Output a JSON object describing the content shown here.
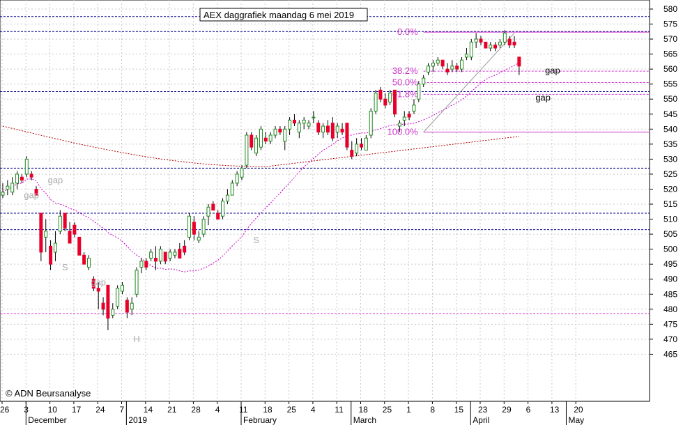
{
  "chart_data": {
    "type": "candlestick",
    "title": "AEX daggrafiek maandag 6 mei 2019",
    "copyright": "© ADN Beursanalyse",
    "colors": {
      "up": "#1e8a1e",
      "down": "#e8002a",
      "ma_short": "#cc00cc",
      "ma_long": "#b00000",
      "fib": "#cc33cc",
      "support": "#00008b"
    },
    "y_axis": {
      "min": 465,
      "max": 580,
      "ticks": [
        580,
        575,
        570,
        565,
        560,
        555,
        550,
        545,
        540,
        535,
        530,
        525,
        520,
        515,
        510,
        505,
        500,
        495,
        490,
        485,
        480,
        475,
        470,
        465
      ]
    },
    "x_axis": {
      "day_labels": [
        "26",
        "3",
        "10",
        "17",
        "24",
        "7",
        "14",
        "21",
        "28",
        "4",
        "11",
        "18",
        "25",
        "4",
        "11",
        "18",
        "25",
        "1",
        "8",
        "15",
        "23",
        "29",
        "6",
        "13",
        "20"
      ],
      "month_labels": [
        "December",
        "2019",
        "February",
        "March",
        "April",
        "May"
      ]
    },
    "levels": [
      {
        "value": 577.5,
        "color": "#00008b"
      },
      {
        "value": 572.5,
        "color": "#00008b"
      },
      {
        "value": 552.5,
        "color": "#00008b"
      },
      {
        "value": 527,
        "color": "#00008b"
      },
      {
        "value": 512,
        "color": "#00008b"
      },
      {
        "value": 506.5,
        "color": "#00008b"
      },
      {
        "value": 478.5,
        "color": "#cc33cc"
      }
    ],
    "fibonacci": [
      {
        "label": "0.0%",
        "value": 572.3
      },
      {
        "label": "38.2%",
        "value": 559.3
      },
      {
        "label": "50.0%",
        "value": 555.5
      },
      {
        "label": "61.8%",
        "value": 551.6
      },
      {
        "label": "100.0%",
        "value": 539
      }
    ],
    "annotations": [
      {
        "text": "gap",
        "day": 11,
        "value": 522,
        "color": "#aaaaaa"
      },
      {
        "text": "gap",
        "day": 6,
        "value": 517,
        "color": "#aaaaaa"
      },
      {
        "text": "S",
        "day": 13,
        "value": 493,
        "color": "#aaaaaa"
      },
      {
        "text": "gap",
        "day": 20,
        "value": 488,
        "color": "#aaaaaa"
      },
      {
        "text": "H",
        "day": 28,
        "value": 469,
        "color": "#aaaaaa"
      },
      {
        "text": "S",
        "day": 53,
        "value": 502,
        "color": "#aaaaaa"
      },
      {
        "text": "gap",
        "day": 115,
        "value": 558.5,
        "color": "#000000"
      },
      {
        "text": "gap",
        "day": 113,
        "value": 549.5,
        "color": "#000000"
      }
    ],
    "candles": [
      {
        "o": 518,
        "h": 522,
        "l": 517,
        "c": 519
      },
      {
        "o": 520,
        "h": 523,
        "l": 518,
        "c": 521
      },
      {
        "o": 519,
        "h": 524,
        "l": 518,
        "c": 522
      },
      {
        "o": 522,
        "h": 526,
        "l": 520,
        "c": 525
      },
      {
        "o": 524,
        "h": 525,
        "l": 522,
        "c": 523
      },
      {
        "o": 525,
        "h": 531,
        "l": 524,
        "c": 530
      },
      {
        "o": 525,
        "h": 526,
        "l": 523,
        "c": 524
      },
      {
        "o": 520,
        "h": 521,
        "l": 518,
        "c": 518
      },
      {
        "o": 512,
        "h": 512,
        "l": 496,
        "c": 499
      },
      {
        "o": 504,
        "h": 510,
        "l": 499,
        "c": 506
      },
      {
        "o": 501,
        "h": 503,
        "l": 493,
        "c": 495
      },
      {
        "o": 499,
        "h": 506,
        "l": 496,
        "c": 502
      },
      {
        "o": 506,
        "h": 513,
        "l": 505,
        "c": 511
      },
      {
        "o": 512,
        "h": 512,
        "l": 506,
        "c": 507
      },
      {
        "o": 506,
        "h": 509,
        "l": 502,
        "c": 502
      },
      {
        "o": 508,
        "h": 509,
        "l": 504,
        "c": 505
      },
      {
        "o": 504,
        "h": 504,
        "l": 498,
        "c": 498
      },
      {
        "o": 498,
        "h": 499,
        "l": 495,
        "c": 495
      },
      {
        "o": 494,
        "h": 498,
        "l": 493,
        "c": 497
      },
      {
        "o": 490,
        "h": 491,
        "l": 486,
        "c": 487
      },
      {
        "o": 487,
        "h": 489,
        "l": 480,
        "c": 486
      },
      {
        "o": 482,
        "h": 484,
        "l": 478,
        "c": 480
      },
      {
        "o": 488,
        "h": 488,
        "l": 473,
        "c": 477
      },
      {
        "o": 478,
        "h": 482,
        "l": 477,
        "c": 480
      },
      {
        "o": 481,
        "h": 488,
        "l": 480,
        "c": 487
      },
      {
        "o": 486,
        "h": 489,
        "l": 485,
        "c": 488
      },
      {
        "o": 483,
        "h": 484,
        "l": 477,
        "c": 479
      },
      {
        "o": 480,
        "h": 484,
        "l": 478,
        "c": 482
      },
      {
        "o": 485,
        "h": 494,
        "l": 484,
        "c": 493
      },
      {
        "o": 494,
        "h": 497,
        "l": 492,
        "c": 496
      },
      {
        "o": 496,
        "h": 497,
        "l": 493,
        "c": 494
      },
      {
        "o": 497,
        "h": 500,
        "l": 496,
        "c": 499
      },
      {
        "o": 497,
        "h": 501,
        "l": 493,
        "c": 496
      },
      {
        "o": 496,
        "h": 501,
        "l": 495,
        "c": 500
      },
      {
        "o": 499,
        "h": 499,
        "l": 495,
        "c": 496
      },
      {
        "o": 497,
        "h": 500,
        "l": 496,
        "c": 499
      },
      {
        "o": 498,
        "h": 500,
        "l": 497,
        "c": 499
      },
      {
        "o": 500,
        "h": 502,
        "l": 497,
        "c": 497
      },
      {
        "o": 501,
        "h": 503,
        "l": 498,
        "c": 499
      },
      {
        "o": 504,
        "h": 512,
        "l": 503,
        "c": 511
      },
      {
        "o": 509,
        "h": 511,
        "l": 503,
        "c": 505
      },
      {
        "o": 503,
        "h": 506,
        "l": 502,
        "c": 504
      },
      {
        "o": 505,
        "h": 511,
        "l": 504,
        "c": 510
      },
      {
        "o": 511,
        "h": 515,
        "l": 508,
        "c": 514
      },
      {
        "o": 515,
        "h": 516,
        "l": 513,
        "c": 513
      },
      {
        "o": 512,
        "h": 513,
        "l": 510,
        "c": 510
      },
      {
        "o": 511,
        "h": 517,
        "l": 510,
        "c": 516
      },
      {
        "o": 516,
        "h": 520,
        "l": 515,
        "c": 518
      },
      {
        "o": 518,
        "h": 523,
        "l": 518,
        "c": 522
      },
      {
        "o": 522,
        "h": 526,
        "l": 521,
        "c": 525
      },
      {
        "o": 524,
        "h": 528,
        "l": 523,
        "c": 527
      },
      {
        "o": 528,
        "h": 539,
        "l": 527,
        "c": 538
      },
      {
        "o": 538,
        "h": 539,
        "l": 533,
        "c": 534
      },
      {
        "o": 532,
        "h": 538,
        "l": 531,
        "c": 537
      },
      {
        "o": 534,
        "h": 541,
        "l": 533,
        "c": 540
      },
      {
        "o": 537,
        "h": 539,
        "l": 535,
        "c": 536
      },
      {
        "o": 536,
        "h": 539,
        "l": 535,
        "c": 538
      },
      {
        "o": 538,
        "h": 541,
        "l": 537,
        "c": 540
      },
      {
        "o": 540,
        "h": 541,
        "l": 538,
        "c": 539
      },
      {
        "o": 536,
        "h": 541,
        "l": 533,
        "c": 540
      },
      {
        "o": 540,
        "h": 544,
        "l": 538,
        "c": 543
      },
      {
        "o": 543,
        "h": 545,
        "l": 541,
        "c": 542
      },
      {
        "o": 539,
        "h": 543,
        "l": 537,
        "c": 542
      },
      {
        "o": 542,
        "h": 544,
        "l": 540,
        "c": 543
      },
      {
        "o": 541,
        "h": 543,
        "l": 540,
        "c": 542
      },
      {
        "o": 544,
        "h": 546,
        "l": 542,
        "c": 544
      },
      {
        "o": 542,
        "h": 543,
        "l": 538,
        "c": 539
      },
      {
        "o": 539,
        "h": 542,
        "l": 537,
        "c": 541
      },
      {
        "o": 541,
        "h": 543,
        "l": 538,
        "c": 539
      },
      {
        "o": 542,
        "h": 544,
        "l": 536,
        "c": 537
      },
      {
        "o": 539,
        "h": 542,
        "l": 537,
        "c": 541
      },
      {
        "o": 540,
        "h": 542,
        "l": 538,
        "c": 539
      },
      {
        "o": 542,
        "h": 542,
        "l": 533,
        "c": 534
      },
      {
        "o": 533,
        "h": 536,
        "l": 530,
        "c": 531
      },
      {
        "o": 532,
        "h": 537,
        "l": 531,
        "c": 535
      },
      {
        "o": 535,
        "h": 537,
        "l": 533,
        "c": 534
      },
      {
        "o": 533,
        "h": 538,
        "l": 533,
        "c": 537
      },
      {
        "o": 538,
        "h": 547,
        "l": 537,
        "c": 546
      },
      {
        "o": 546,
        "h": 553,
        "l": 545,
        "c": 552
      },
      {
        "o": 553,
        "h": 554,
        "l": 549,
        "c": 550
      },
      {
        "o": 550,
        "h": 552,
        "l": 547,
        "c": 548
      },
      {
        "o": 549,
        "h": 553,
        "l": 548,
        "c": 552
      },
      {
        "o": 553,
        "h": 553,
        "l": 544,
        "c": 545
      },
      {
        "o": 541,
        "h": 543,
        "l": 539,
        "c": 542
      },
      {
        "o": 543,
        "h": 546,
        "l": 541,
        "c": 544
      },
      {
        "o": 545,
        "h": 546,
        "l": 543,
        "c": 544
      },
      {
        "o": 546,
        "h": 550,
        "l": 545,
        "c": 548
      },
      {
        "o": 550,
        "h": 556,
        "l": 549,
        "c": 555
      },
      {
        "o": 555,
        "h": 558,
        "l": 554,
        "c": 557
      },
      {
        "o": 559,
        "h": 562,
        "l": 558,
        "c": 561
      },
      {
        "o": 561,
        "h": 563,
        "l": 559,
        "c": 562
      },
      {
        "o": 562,
        "h": 564,
        "l": 561,
        "c": 563
      },
      {
        "o": 563,
        "h": 563,
        "l": 560,
        "c": 561
      },
      {
        "o": 560,
        "h": 562,
        "l": 558,
        "c": 559
      },
      {
        "o": 560,
        "h": 563,
        "l": 559,
        "c": 561
      },
      {
        "o": 561,
        "h": 562,
        "l": 559,
        "c": 560
      },
      {
        "o": 560,
        "h": 564,
        "l": 559,
        "c": 563
      },
      {
        "o": 564,
        "h": 567,
        "l": 563,
        "c": 565
      },
      {
        "o": 564,
        "h": 570,
        "l": 563,
        "c": 569
      },
      {
        "o": 569,
        "h": 572,
        "l": 567,
        "c": 570
      },
      {
        "o": 570,
        "h": 571,
        "l": 568,
        "c": 569
      },
      {
        "o": 569,
        "h": 569,
        "l": 567,
        "c": 567
      },
      {
        "o": 567,
        "h": 569,
        "l": 566,
        "c": 568
      },
      {
        "o": 568,
        "h": 569,
        "l": 566,
        "c": 567
      },
      {
        "o": 568,
        "h": 570,
        "l": 567,
        "c": 569
      },
      {
        "o": 569,
        "h": 573,
        "l": 568,
        "c": 572
      },
      {
        "o": 570,
        "h": 571,
        "l": 567,
        "c": 568
      },
      {
        "o": 569,
        "h": 571,
        "l": 567,
        "c": 568
      },
      {
        "o": 564,
        "h": 564,
        "l": 558,
        "c": 561
      }
    ]
  }
}
